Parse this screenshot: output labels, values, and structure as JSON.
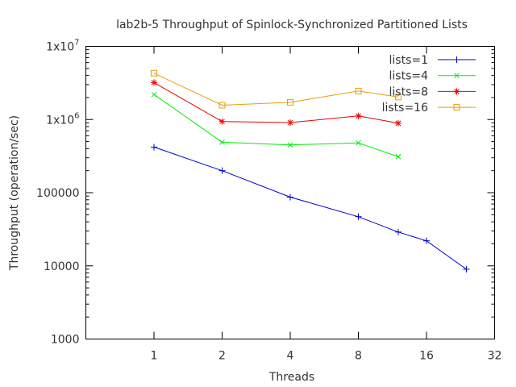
{
  "chart_data": {
    "type": "line",
    "title": "lab2b-5 Throughput of Spinlock-Synchronized Partitioned Lists",
    "xlabel": "Threads",
    "ylabel": "Throughput (operation/sec)",
    "x_scale": "log2",
    "y_scale": "log10",
    "xlim": [
      0.5,
      32
    ],
    "ylim": [
      1000,
      10000000
    ],
    "x_ticks": [
      1,
      2,
      4,
      8,
      16,
      32
    ],
    "x_tick_labels": [
      "1",
      "2",
      "4",
      "8",
      "16",
      "32"
    ],
    "y_ticks": [
      1000,
      10000,
      100000,
      1000000,
      10000000
    ],
    "y_tick_labels": [
      {
        "mantissa": "1000",
        "exp": ""
      },
      {
        "mantissa": "10000",
        "exp": ""
      },
      {
        "mantissa": "100000",
        "exp": ""
      },
      {
        "mantissa": "1x10",
        "exp": "6"
      },
      {
        "mantissa": "1x10",
        "exp": "7"
      }
    ],
    "grid": false,
    "legend_position": "top-right",
    "series": [
      {
        "name": "lists=1",
        "color": "#0000cc",
        "marker": "plus",
        "x": [
          1,
          2,
          4,
          8,
          12,
          16,
          24
        ],
        "y": [
          420000,
          200000,
          87000,
          47000,
          29000,
          22000,
          9000
        ]
      },
      {
        "name": "lists=4",
        "color": "#00ee00",
        "marker": "cross",
        "x": [
          1,
          2,
          4,
          8,
          12
        ],
        "y": [
          2200000,
          490000,
          450000,
          480000,
          310000
        ]
      },
      {
        "name": "lists=8",
        "color": "#ee0000",
        "marker": "star",
        "x": [
          1,
          2,
          4,
          8,
          12
        ],
        "y": [
          3200000,
          940000,
          910000,
          1120000,
          890000
        ]
      },
      {
        "name": "lists=16",
        "color": "#e6a000",
        "marker": "square",
        "x": [
          1,
          2,
          4,
          8,
          12
        ],
        "y": [
          4300000,
          1570000,
          1720000,
          2450000,
          2030000
        ]
      }
    ]
  }
}
